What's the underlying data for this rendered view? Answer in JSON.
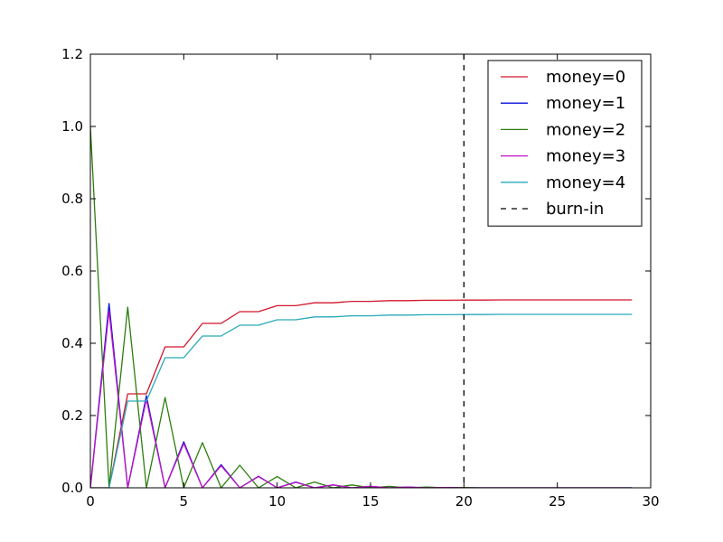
{
  "chart_data": {
    "type": "line",
    "title": "",
    "xlabel": "",
    "ylabel": "",
    "xlim": [
      0,
      30
    ],
    "ylim": [
      0,
      1.2
    ],
    "xticks": [
      0,
      5,
      10,
      15,
      20,
      25,
      30
    ],
    "yticks": [
      0.0,
      0.2,
      0.4,
      0.6,
      0.8,
      1.0,
      1.2
    ],
    "xtick_labels": [
      "0",
      "5",
      "10",
      "15",
      "20",
      "25",
      "30"
    ],
    "ytick_labels": [
      "0.0",
      "0.2",
      "0.4",
      "0.6",
      "0.8",
      "1.0",
      "1.2"
    ],
    "grid": false,
    "legend_position": "top-right",
    "x": [
      0,
      1,
      2,
      3,
      4,
      5,
      6,
      7,
      8,
      9,
      10,
      11,
      12,
      13,
      14,
      15,
      16,
      17,
      18,
      19,
      20,
      21,
      22,
      23,
      24,
      25,
      26,
      27,
      28,
      29
    ],
    "series": [
      {
        "name": "money=0",
        "color": "#d2162c",
        "style": "solid",
        "values": [
          0,
          0,
          0.26,
          0.26,
          0.39,
          0.39,
          0.455,
          0.455,
          0.4875,
          0.4875,
          0.504,
          0.504,
          0.512,
          0.512,
          0.516,
          0.516,
          0.518,
          0.518,
          0.519,
          0.519,
          0.5195,
          0.5195,
          0.52,
          0.52,
          0.52,
          0.52,
          0.52,
          0.52,
          0.52,
          0.52
        ]
      },
      {
        "name": "money=1",
        "color": "#0a10e0",
        "style": "solid",
        "values": [
          0,
          0.51,
          0,
          0.255,
          0,
          0.1275,
          0,
          0.064,
          0,
          0.032,
          0,
          0.016,
          0,
          0.008,
          0,
          0.004,
          0,
          0.002,
          0,
          0.001,
          0,
          0,
          0,
          0,
          0,
          0,
          0,
          0,
          0,
          0
        ]
      },
      {
        "name": "money=2",
        "color": "#2d7d0e",
        "style": "solid",
        "values": [
          1.0,
          0,
          0.5,
          0,
          0.25,
          0,
          0.125,
          0,
          0.0625,
          0,
          0.031,
          0,
          0.016,
          0,
          0.008,
          0,
          0.004,
          0,
          0.002,
          0,
          0.001,
          0,
          0,
          0,
          0,
          0,
          0,
          0,
          0,
          0
        ]
      },
      {
        "name": "money=3",
        "color": "#c014c0",
        "style": "solid",
        "values": [
          0,
          0.49,
          0,
          0.245,
          0,
          0.1225,
          0,
          0.061,
          0,
          0.031,
          0,
          0.015,
          0,
          0.008,
          0,
          0.004,
          0,
          0.002,
          0,
          0.001,
          0,
          0,
          0,
          0,
          0,
          0,
          0,
          0,
          0,
          0
        ]
      },
      {
        "name": "money=4",
        "color": "#27aab8",
        "style": "solid",
        "values": [
          0,
          0,
          0.24,
          0.24,
          0.36,
          0.36,
          0.42,
          0.42,
          0.45,
          0.45,
          0.465,
          0.465,
          0.473,
          0.473,
          0.476,
          0.476,
          0.478,
          0.478,
          0.479,
          0.479,
          0.4795,
          0.4795,
          0.48,
          0.48,
          0.48,
          0.48,
          0.48,
          0.48,
          0.48,
          0.48
        ]
      }
    ],
    "vlines": [
      {
        "name": "burn-in",
        "x": 20,
        "color": "#000000",
        "style": "dashed"
      }
    ],
    "legend": [
      {
        "label": "money=0",
        "color": "#d2162c",
        "style": "solid"
      },
      {
        "label": "money=1",
        "color": "#0a10e0",
        "style": "solid"
      },
      {
        "label": "money=2",
        "color": "#2d7d0e",
        "style": "solid"
      },
      {
        "label": "money=3",
        "color": "#c014c0",
        "style": "solid"
      },
      {
        "label": "money=4",
        "color": "#27aab8",
        "style": "solid"
      },
      {
        "label": "burn-in",
        "color": "#000000",
        "style": "dashed"
      }
    ]
  }
}
